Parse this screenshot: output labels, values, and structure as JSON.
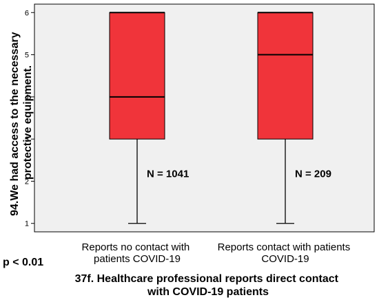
{
  "chart_data": {
    "type": "boxplot",
    "y_title_lines": [
      "94.We had access to the necessary",
      "protective equipment."
    ],
    "x_title_lines": [
      "37f. Healthcare professional reports direct contact",
      "with COVID-19 patients"
    ],
    "ylim": [
      0.8,
      6.2
    ],
    "y_ticks": [
      "1",
      "2",
      "3",
      "4",
      "5",
      "6"
    ],
    "grid": false,
    "box_color": "#f0343a",
    "plot_bg": "#f0f0f0",
    "annotation": "p < 0.01",
    "groups": [
      {
        "label_lines": [
          "Reports no contact with",
          "patients COVID-19"
        ],
        "n_label": "N = 1041",
        "min": 1,
        "q1": 3,
        "median": 4,
        "q3": 6,
        "max": 6
      },
      {
        "label_lines": [
          "Reports contact with patients",
          "COVID-19"
        ],
        "n_label": "N = 209",
        "min": 1,
        "q1": 3,
        "median": 5,
        "q3": 6,
        "max": 6
      }
    ]
  }
}
